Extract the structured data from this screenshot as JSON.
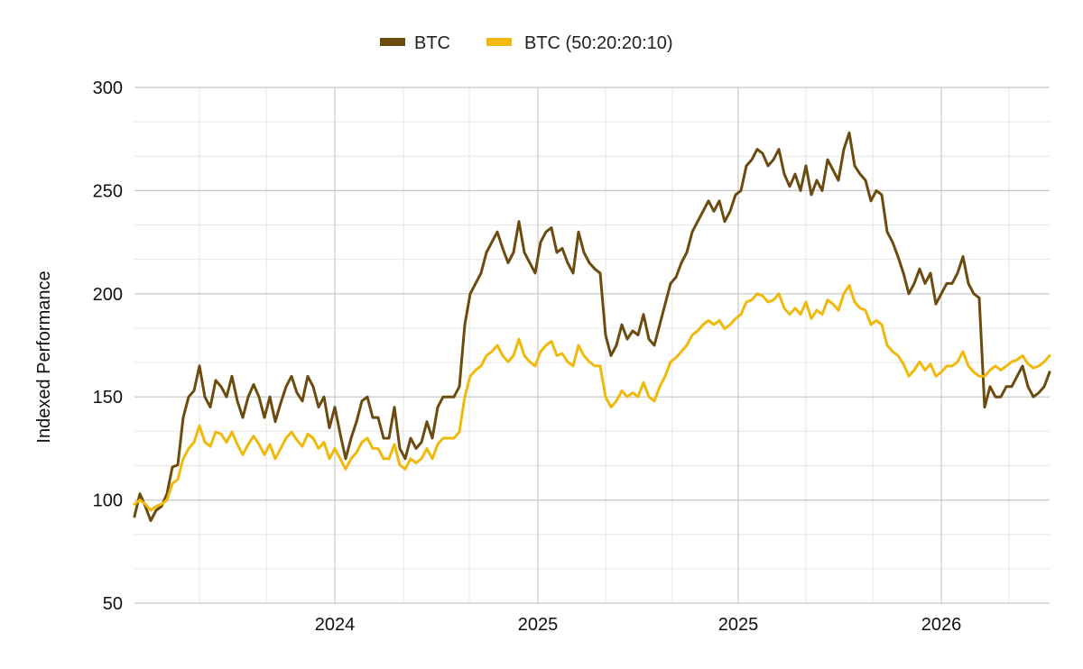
{
  "chart_data": {
    "type": "line",
    "ylabel": "Indexed Performance",
    "xlabel": "",
    "ylim": [
      50,
      300
    ],
    "y_ticks": [
      "300",
      "250",
      "200",
      "150",
      "100",
      "50"
    ],
    "x_tick_labels": [
      "2024",
      "2025",
      "2025",
      "2026"
    ],
    "grid": true,
    "legend_position": "top-center",
    "series": [
      {
        "name": "BTC",
        "color": "#6b4c0e",
        "values": [
          92,
          103,
          97,
          90,
          95,
          97,
          103,
          116,
          117,
          140,
          150,
          153,
          165,
          150,
          145,
          158,
          155,
          150,
          160,
          148,
          140,
          150,
          156,
          150,
          140,
          150,
          138,
          147,
          155,
          160,
          152,
          148,
          160,
          155,
          145,
          150,
          135,
          145,
          132,
          120,
          130,
          138,
          148,
          150,
          140,
          140,
          130,
          130,
          145,
          125,
          120,
          130,
          125,
          128,
          138,
          130,
          145,
          150,
          150,
          150,
          155,
          185,
          200,
          205,
          210,
          220,
          225,
          230,
          222,
          215,
          220,
          235,
          220,
          215,
          210,
          225,
          230,
          232,
          220,
          222,
          215,
          210,
          230,
          220,
          215,
          212,
          210,
          180,
          170,
          175,
          185,
          178,
          182,
          180,
          190,
          178,
          175,
          185,
          195,
          205,
          208,
          215,
          220,
          230,
          235,
          240,
          245,
          240,
          245,
          235,
          240,
          248,
          250,
          262,
          265,
          270,
          268,
          262,
          265,
          270,
          258,
          252,
          258,
          250,
          262,
          248,
          255,
          250,
          265,
          260,
          255,
          270,
          278,
          262,
          258,
          255,
          245,
          250,
          248,
          230,
          225,
          218,
          210,
          200,
          205,
          212,
          205,
          210,
          195,
          200,
          205,
          205,
          210,
          218,
          205,
          200,
          198,
          145,
          155,
          150,
          150,
          155,
          155,
          160,
          165,
          155,
          150,
          152,
          155,
          162
        ]
      },
      {
        "name": "BTC (50:20:20:10)",
        "color": "#f0b90b",
        "values": [
          98,
          100,
          98,
          95,
          97,
          98,
          100,
          108,
          110,
          120,
          125,
          128,
          136,
          128,
          126,
          133,
          132,
          128,
          133,
          127,
          122,
          127,
          131,
          127,
          122,
          127,
          120,
          125,
          130,
          133,
          129,
          126,
          132,
          130,
          125,
          128,
          120,
          125,
          120,
          115,
          120,
          123,
          128,
          130,
          125,
          125,
          120,
          120,
          127,
          117,
          115,
          120,
          118,
          120,
          125,
          120,
          127,
          130,
          130,
          130,
          133,
          150,
          160,
          163,
          165,
          170,
          172,
          175,
          170,
          167,
          170,
          178,
          170,
          167,
          165,
          172,
          175,
          177,
          170,
          171,
          167,
          165,
          175,
          170,
          167,
          165,
          165,
          150,
          145,
          148,
          153,
          150,
          152,
          150,
          157,
          150,
          148,
          155,
          160,
          167,
          169,
          172,
          175,
          180,
          182,
          185,
          187,
          185,
          187,
          183,
          185,
          188,
          190,
          196,
          197,
          200,
          199,
          196,
          197,
          200,
          193,
          190,
          193,
          190,
          196,
          188,
          192,
          190,
          197,
          195,
          192,
          200,
          204,
          196,
          193,
          192,
          185,
          187,
          185,
          175,
          172,
          170,
          166,
          160,
          163,
          167,
          163,
          166,
          160,
          162,
          165,
          165,
          167,
          172,
          165,
          162,
          160,
          160,
          163,
          165,
          163,
          165,
          167,
          168,
          170,
          166,
          164,
          165,
          167,
          170
        ]
      }
    ]
  }
}
